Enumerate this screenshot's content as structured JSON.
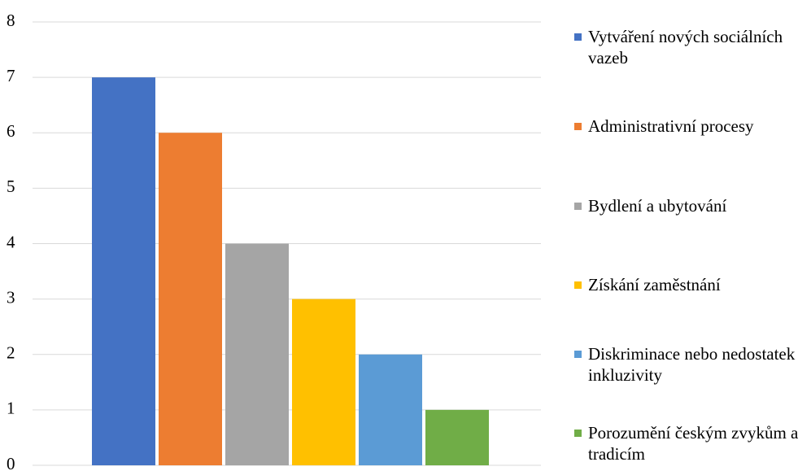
{
  "chart_data": {
    "type": "bar",
    "categories": [
      null
    ],
    "series": [
      {
        "name": "Vytváření nových sociálních vazeb",
        "color": "#4472c4",
        "values": [
          7
        ]
      },
      {
        "name": "Administrativní procesy",
        "color": "#ed7d31",
        "values": [
          6
        ]
      },
      {
        "name": "Bydlení a ubytování",
        "color": "#a5a5a5",
        "values": [
          4
        ]
      },
      {
        "name": "Získání zaměstnání",
        "color": "#ffc000",
        "values": [
          3
        ]
      },
      {
        "name": "Diskriminace nebo nedostatek inkluzivity",
        "color": "#5b9bd5",
        "values": [
          2
        ]
      },
      {
        "name": "Porozumění českým zvykům a tradicím",
        "color": "#70ad47",
        "values": [
          1
        ]
      }
    ],
    "ylim": [
      0,
      8
    ],
    "yticks": [
      0,
      1,
      2,
      3,
      4,
      5,
      6,
      7,
      8
    ],
    "grid": true,
    "legend": "right"
  }
}
